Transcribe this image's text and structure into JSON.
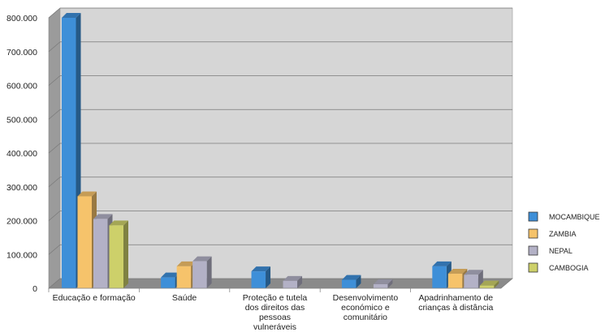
{
  "chart_data": {
    "type": "bar",
    "style": "3d-clustered-column",
    "categories": [
      [
        "Educação e formação"
      ],
      [
        "Saúde"
      ],
      [
        "Proteção e tutela",
        "dos direitos das",
        "pessoas",
        "vulneráveis"
      ],
      [
        "Desenvolvimento",
        "económico e",
        "comunitário"
      ],
      [
        "Apadrinhamento de",
        "crianças à distância"
      ]
    ],
    "series": [
      {
        "name": "MOCAMBIQUE",
        "color": "#3e8fd8",
        "values": [
          800000,
          32000,
          50000,
          25000,
          65000
        ]
      },
      {
        "name": "ZAMBIA",
        "color": "#f6c36b",
        "values": [
          272000,
          65000,
          0,
          0,
          43000
        ]
      },
      {
        "name": "NEPAL",
        "color": "#b3b1c6",
        "values": [
          205000,
          80000,
          22000,
          12000,
          40000
        ]
      },
      {
        "name": "CAMBOGIA",
        "color": "#cdd06a",
        "values": [
          186000,
          0,
          0,
          0,
          8000
        ]
      }
    ],
    "yticks": [
      "0",
      "100.000",
      "200.000",
      "300.000",
      "400.000",
      "500.000",
      "600.000",
      "700.000",
      "800.000"
    ],
    "ylim": [
      0,
      800000
    ],
    "grid": true,
    "legend": "right"
  }
}
